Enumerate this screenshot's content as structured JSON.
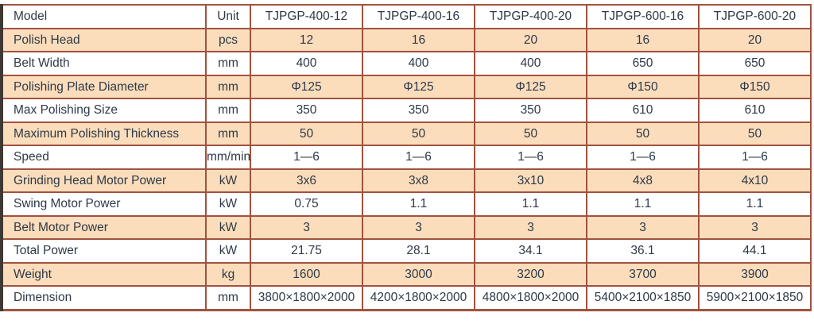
{
  "table": {
    "columns": {
      "model_header": "Model",
      "unit_header": "Unit",
      "model_names": [
        "TJPGP-400-12",
        "TJPGP-400-16",
        "TJPGP-400-20",
        "TJPGP-600-16",
        "TJPGP-600-20"
      ]
    },
    "rows": [
      {
        "label": "Polish Head",
        "unit": "pcs",
        "values": [
          "12",
          "16",
          "20",
          "16",
          "20"
        ]
      },
      {
        "label": "Belt Width",
        "unit": "mm",
        "values": [
          "400",
          "400",
          "400",
          "650",
          "650"
        ]
      },
      {
        "label": "Polishing Plate Diameter",
        "unit": "mm",
        "values": [
          "Φ125",
          "Φ125",
          "Φ125",
          "Φ150",
          "Φ150"
        ]
      },
      {
        "label": "Max Polishing Size",
        "unit": "mm",
        "values": [
          "350",
          "350",
          "350",
          "610",
          "610"
        ]
      },
      {
        "label": "Maximum Polishing Thickness",
        "unit": "mm",
        "values": [
          "50",
          "50",
          "50",
          "50",
          "50"
        ]
      },
      {
        "label": "Speed",
        "unit": "mm/min",
        "values": [
          "1—6",
          "1—6",
          "1—6",
          "1—6",
          "1—6"
        ]
      },
      {
        "label": "Grinding Head Motor Power",
        "unit": "kW",
        "values": [
          "3x6",
          "3x8",
          "3x10",
          "4x8",
          "4x10"
        ]
      },
      {
        "label": "Swing Motor Power",
        "unit": "kW",
        "values": [
          "0.75",
          "1.1",
          "1.1",
          "1.1",
          "1.1"
        ]
      },
      {
        "label": "Belt Motor Power",
        "unit": "kW",
        "values": [
          "3",
          "3",
          "3",
          "3",
          "3"
        ]
      },
      {
        "label": "Total Power",
        "unit": "kW",
        "values": [
          "21.75",
          "28.1",
          "34.1",
          "36.1",
          "44.1"
        ]
      },
      {
        "label": "Weight",
        "unit": "kg",
        "values": [
          "1600",
          "3000",
          "3200",
          "3700",
          "3900"
        ]
      },
      {
        "label": "Dimension",
        "unit": "mm",
        "values": [
          "3800×1800×2000",
          "4200×1800×2000",
          "4800×1800×2000",
          "5400×2100×1850",
          "5900×2100×1850"
        ]
      }
    ]
  },
  "colors": {
    "shaded_row_bg": "#fbddbc",
    "plain_row_bg": "#ffffff",
    "grid_border": "#a1523e",
    "outer_left_border": "#3f3833",
    "text": "#2e3947"
  }
}
